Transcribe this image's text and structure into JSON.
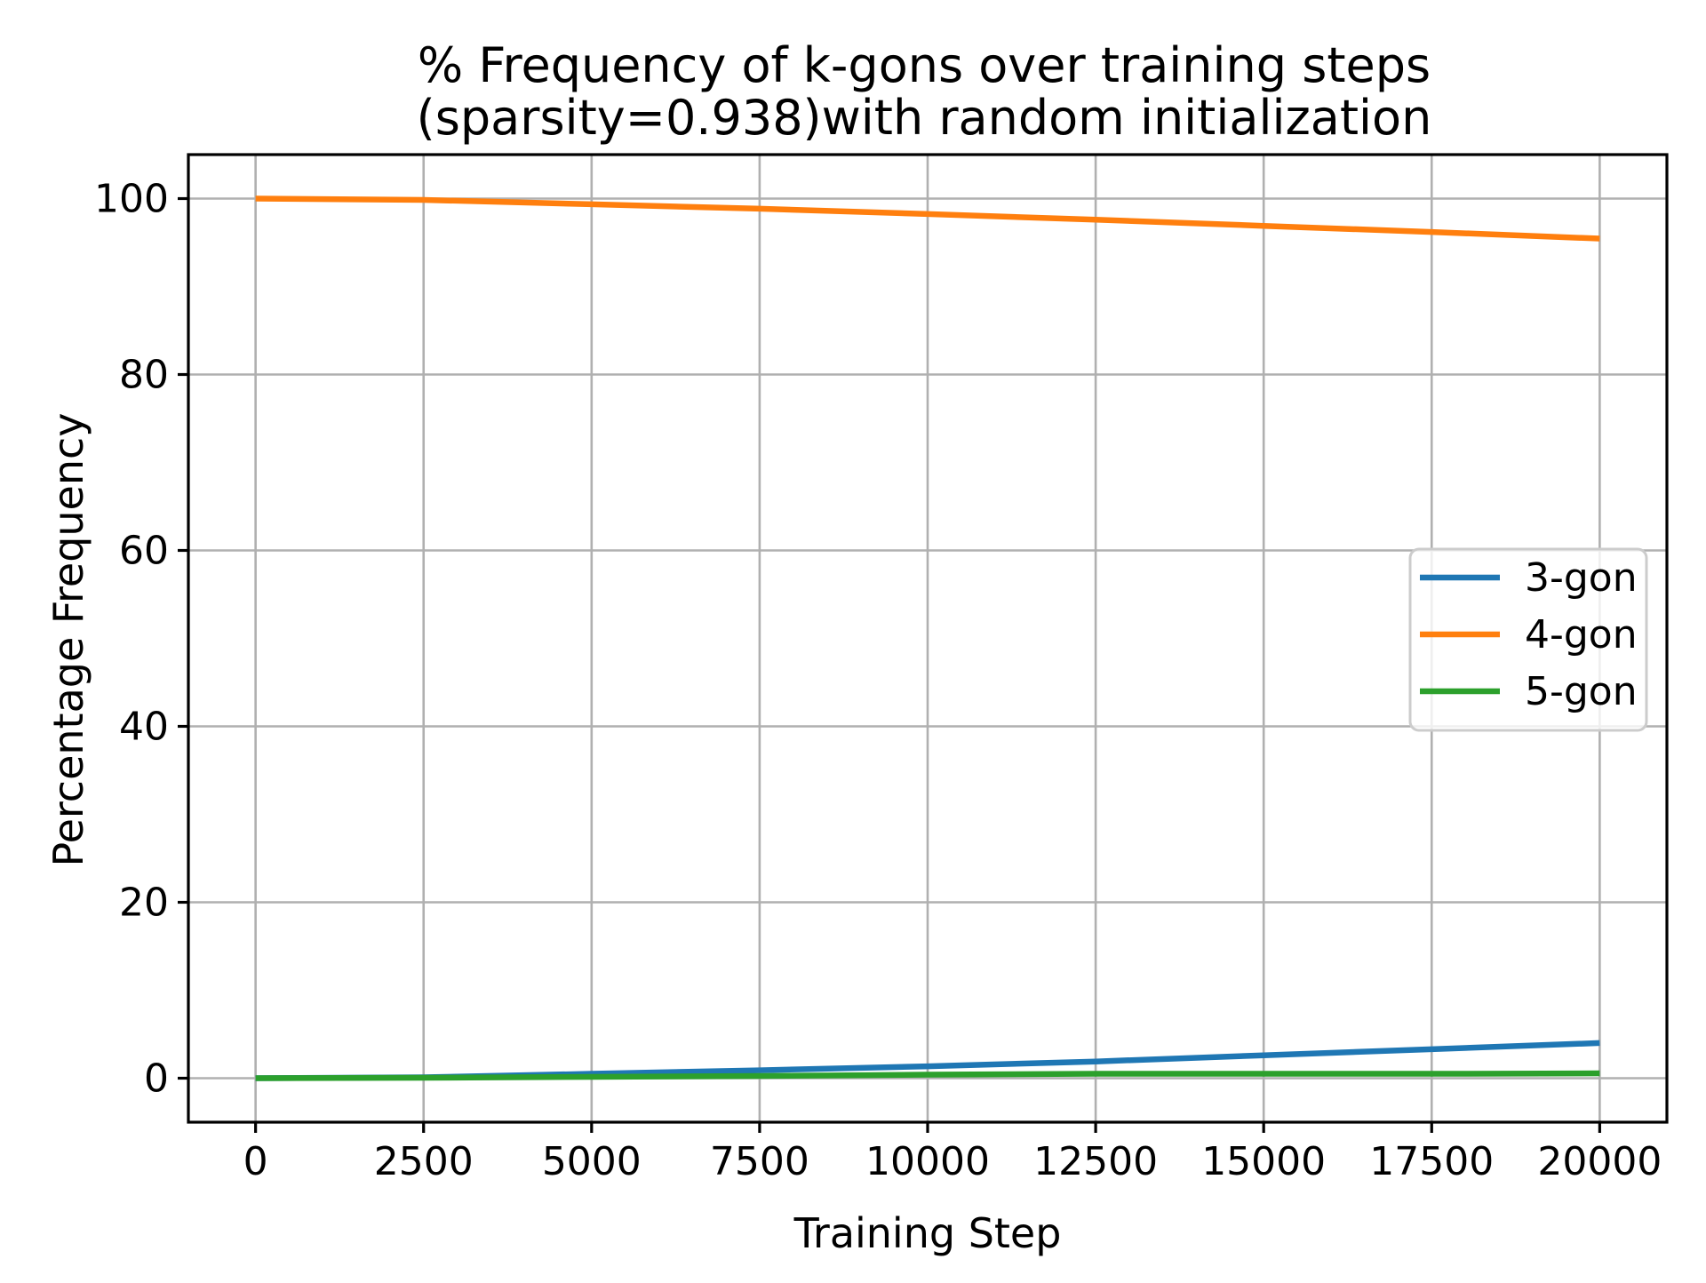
{
  "figure": {
    "background": "#ffffff",
    "title_lines": [
      "% Frequency of k-gons over training steps",
      "(sparsity=0.938)with random initialization"
    ]
  },
  "chart_data": {
    "type": "line",
    "title": "% Frequency of k-gons over training steps\n(sparsity=0.938)with random initialization",
    "xlabel": "Training Step",
    "ylabel": "Percentage Frequency",
    "xlim": [
      -1000,
      21000
    ],
    "ylim": [
      -5,
      105
    ],
    "xticks": [
      0,
      2500,
      5000,
      7500,
      10000,
      12500,
      15000,
      17500,
      20000
    ],
    "xtick_labels": [
      "0",
      "2500",
      "5000",
      "7500",
      "10000",
      "12500",
      "15000",
      "17500",
      "20000"
    ],
    "yticks": [
      0,
      20,
      40,
      60,
      80,
      100
    ],
    "ytick_labels": [
      "0",
      "20",
      "40",
      "60",
      "80",
      "100"
    ],
    "grid": true,
    "grid_color": "#b0b0b0",
    "spine_color": "#000000",
    "legend_position": "center right",
    "legend_edge_color": "#cccccc",
    "x": [
      0,
      2500,
      5000,
      7500,
      10000,
      12500,
      15000,
      17500,
      20000
    ],
    "series": [
      {
        "name": "3-gon",
        "color": "#1f77b4",
        "values": [
          0.0,
          0.1,
          0.5,
          0.9,
          1.35,
          1.9,
          2.6,
          3.3,
          4.0
        ]
      },
      {
        "name": "4-gon",
        "color": "#ff7f0e",
        "values": [
          100.0,
          99.85,
          99.35,
          98.85,
          98.25,
          97.6,
          96.9,
          96.2,
          95.45
        ]
      },
      {
        "name": "5-gon",
        "color": "#2ca02c",
        "values": [
          0.0,
          0.05,
          0.15,
          0.25,
          0.4,
          0.5,
          0.5,
          0.5,
          0.55
        ]
      }
    ]
  }
}
